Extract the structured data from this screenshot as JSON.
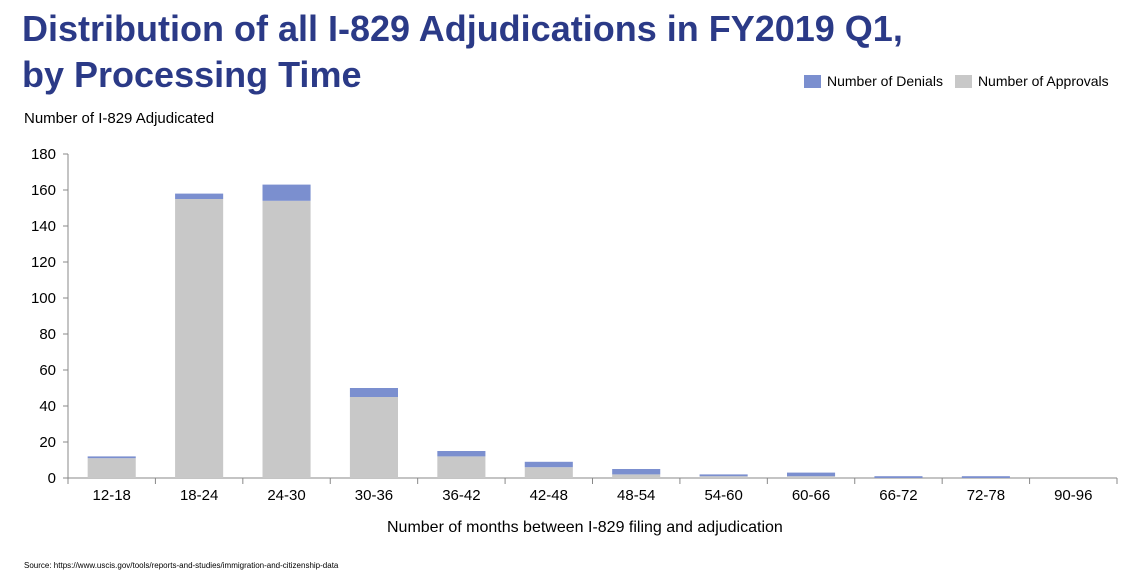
{
  "title": [
    "Distribution of all I-829 Adjudications in FY2019 Q1,",
    "by Processing Time"
  ],
  "source": "Source: https://www.uscis.gov/tools/reports-and-studies/immigration-and-citizenship-data",
  "colors": {
    "title": "#2b3a87",
    "denials": "#7b8fcf",
    "approvals": "#c8c8c8"
  },
  "chart_data": {
    "type": "bar",
    "stacked": true,
    "ylabel": "Number of I-829 Adjudicated",
    "xlabel": "Number of months between I-829 filing and adjudication",
    "ylim": [
      0,
      180
    ],
    "yticks": [
      0,
      20,
      40,
      60,
      80,
      100,
      120,
      140,
      160,
      180
    ],
    "grid": false,
    "legend_position": "top-right",
    "categories": [
      "12-18",
      "18-24",
      "24-30",
      "30-36",
      "36-42",
      "42-48",
      "48-54",
      "54-60",
      "60-66",
      "66-72",
      "72-78",
      "90-96"
    ],
    "series": [
      {
        "name": "Number of Approvals",
        "color": "#c8c8c8",
        "values": [
          11,
          155,
          154,
          45,
          12,
          6,
          2,
          1,
          1,
          0,
          0,
          0
        ]
      },
      {
        "name": "Number of Denials",
        "color": "#7b8fcf",
        "values": [
          1,
          3,
          9,
          5,
          3,
          3,
          3,
          1,
          2,
          1,
          1,
          0
        ]
      }
    ]
  }
}
